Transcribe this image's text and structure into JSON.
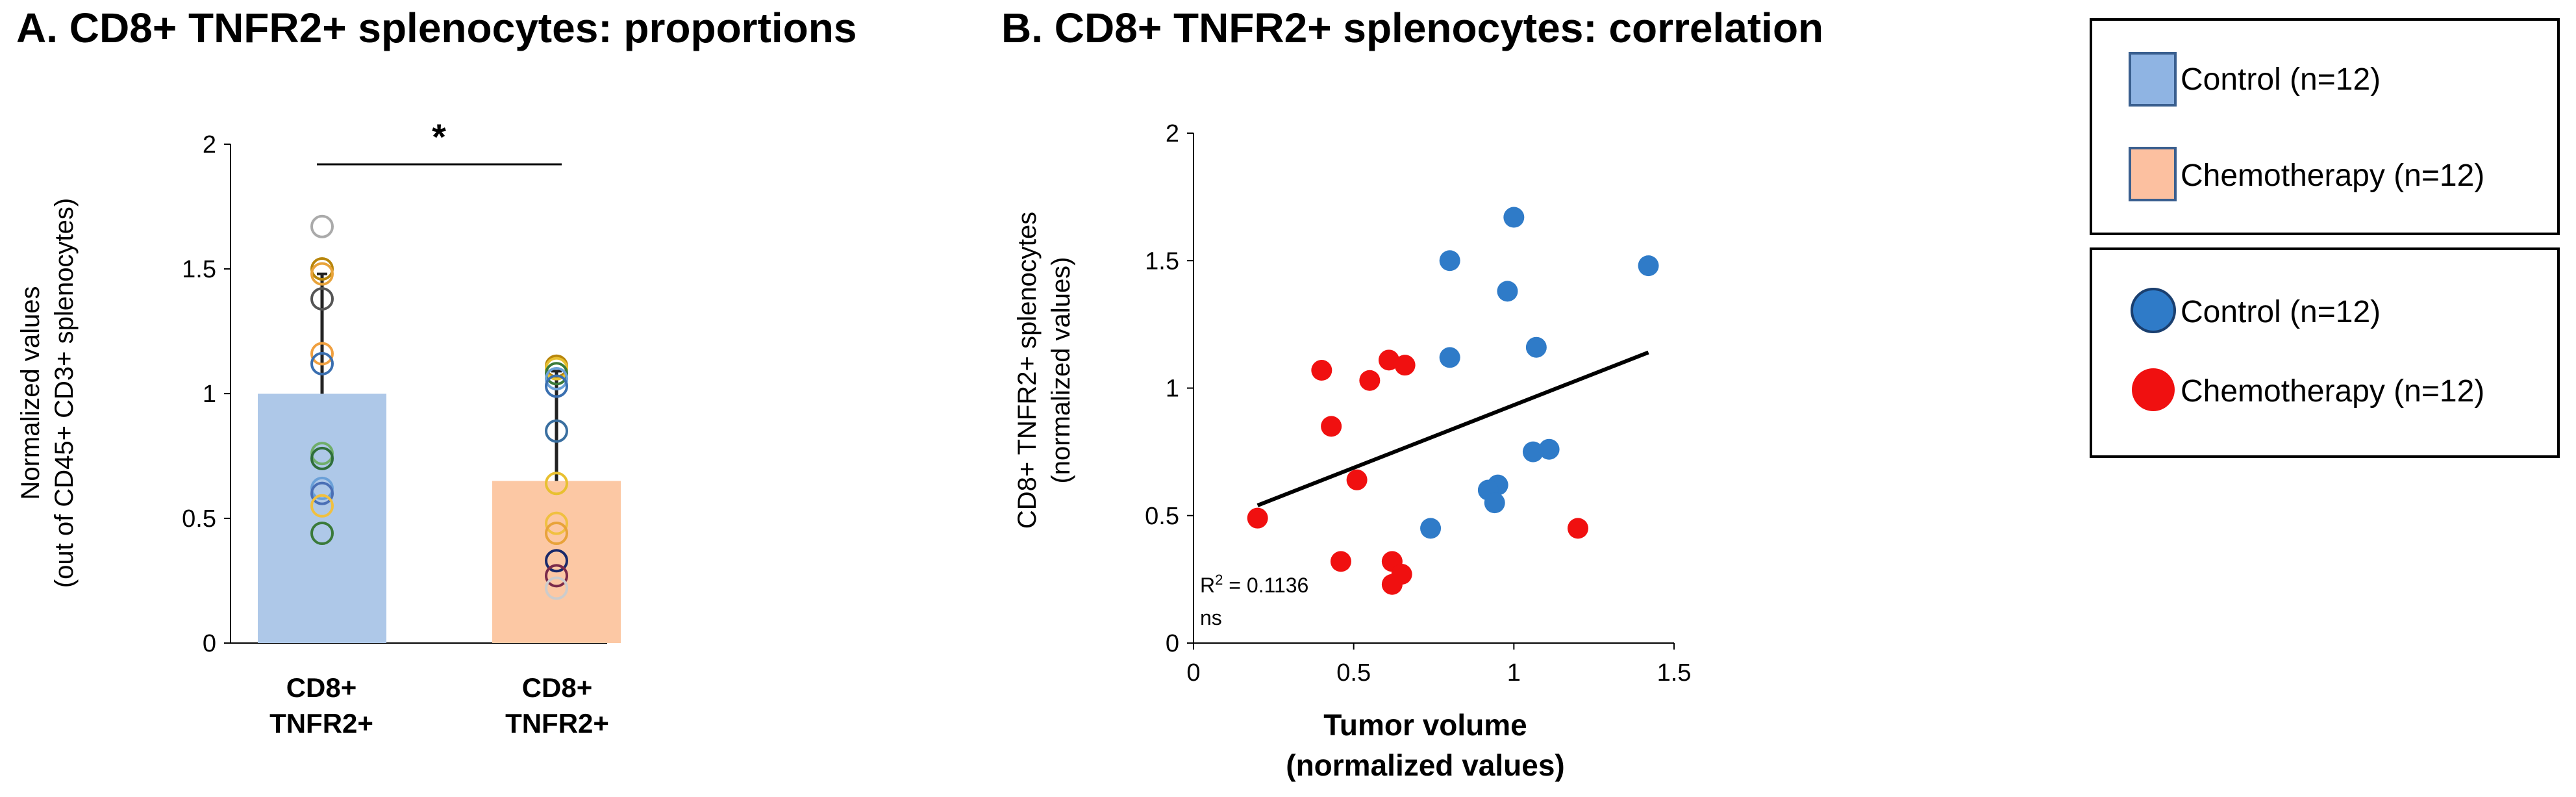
{
  "chart_data": [
    {
      "id": "A",
      "type": "bar",
      "title": "A. CD8+ TNFR2+ splenocytes: proportions",
      "ylabel_line1": "Normalized values",
      "ylabel_line2": "(out of CD45+ CD3+ splenocytes)",
      "ylim": [
        0,
        2
      ],
      "yticks": [
        0,
        0.5,
        1,
        1.5,
        2
      ],
      "ytick_labels": [
        "0",
        "0.5",
        "1",
        "1.5",
        "2"
      ],
      "categories": [
        {
          "line1": "CD8+",
          "line2": "TNFR2+"
        },
        {
          "line1": "CD8+",
          "line2": "TNFR2+"
        }
      ],
      "series": [
        {
          "name": "Control",
          "value": 1.0,
          "error": 0.48,
          "bar_color": "#aec8e8",
          "points": [
            1.67,
            1.5,
            1.48,
            1.38,
            1.16,
            1.12,
            0.76,
            0.74,
            0.62,
            0.6,
            0.55,
            0.44
          ],
          "point_colors": [
            "#aaaaaa",
            "#b8860b",
            "#e8a33a",
            "#555555",
            "#f0a040",
            "#3a6fb0",
            "#6fae6a",
            "#2f6f3a",
            "#6aa0d8",
            "#4a6fb5",
            "#f0c040",
            "#3a7a3a"
          ]
        },
        {
          "name": "Chemotherapy",
          "value": 0.65,
          "error": 0.44,
          "bar_color": "#fcc8a4",
          "points": [
            1.11,
            1.1,
            1.08,
            1.06,
            1.03,
            0.85,
            0.64,
            0.48,
            0.44,
            0.33,
            0.27,
            0.22
          ],
          "point_colors": [
            "#b8860b",
            "#e8c030",
            "#3a7a3a",
            "#6aa0d8",
            "#3a6fb0",
            "#3a6fa0",
            "#e8c030",
            "#f0c040",
            "#e8a33a",
            "#1a2a6a",
            "#7a2a4a",
            "#cccccc"
          ]
        }
      ],
      "significance": "*"
    },
    {
      "id": "B",
      "type": "scatter",
      "title": "B. CD8+ TNFR2+ splenocytes: correlation",
      "xlabel_line1": "Tumor volume",
      "xlabel_line2": "(normalized values)",
      "ylabel_line1": "CD8+ TNFR2+ splenocytes",
      "ylabel_line2": "(normalized values)",
      "xlim": [
        0,
        1.5
      ],
      "ylim": [
        0,
        2
      ],
      "xticks": [
        0,
        0.5,
        1,
        1.5
      ],
      "xtick_labels": [
        "0",
        "0.5",
        "1",
        "1.5"
      ],
      "yticks": [
        0,
        0.5,
        1,
        1.5,
        2
      ],
      "ytick_labels": [
        "0",
        "0.5",
        "1",
        "1.5",
        "2"
      ],
      "series": [
        {
          "name": "Control",
          "color": "#2f7bc8",
          "points": [
            [
              1.0,
              1.67
            ],
            [
              1.42,
              1.48
            ],
            [
              0.8,
              1.5
            ],
            [
              0.98,
              1.38
            ],
            [
              1.07,
              1.16
            ],
            [
              0.8,
              1.12
            ],
            [
              1.11,
              0.76
            ],
            [
              1.06,
              0.75
            ],
            [
              0.95,
              0.62
            ],
            [
              0.92,
              0.6
            ],
            [
              0.94,
              0.55
            ],
            [
              0.74,
              0.45
            ]
          ]
        },
        {
          "name": "Chemotherapy",
          "color": "#f01010",
          "points": [
            [
              0.61,
              1.11
            ],
            [
              0.66,
              1.09
            ],
            [
              0.4,
              1.07
            ],
            [
              0.55,
              1.03
            ],
            [
              0.43,
              0.85
            ],
            [
              0.51,
              0.64
            ],
            [
              0.2,
              0.49
            ],
            [
              1.2,
              0.45
            ],
            [
              0.46,
              0.32
            ],
            [
              0.62,
              0.32
            ],
            [
              0.65,
              0.27
            ],
            [
              0.62,
              0.23
            ]
          ]
        }
      ],
      "trendline": {
        "x": [
          0.2,
          1.42
        ],
        "y": [
          0.54,
          1.14
        ]
      },
      "annotation_r2_prefix": "R",
      "annotation_r2_sup": "2",
      "annotation_r2_value": " = 0.1136",
      "annotation_ns": "ns"
    }
  ],
  "legend_bar": {
    "items": [
      {
        "label": "Control (n=12)",
        "color": "#8fb4e3",
        "border": "#3a5f8f"
      },
      {
        "label": "Chemotherapy (n=12)",
        "color": "#fcc0a0",
        "border": "#3a5f8f"
      }
    ]
  },
  "legend_scatter": {
    "items": [
      {
        "label": "Control (n=12)",
        "color": "#2f7bc8",
        "border": "#1a3f6f"
      },
      {
        "label": "Chemotherapy (n=12)",
        "color": "#f01010",
        "border": "#f01010"
      }
    ]
  }
}
